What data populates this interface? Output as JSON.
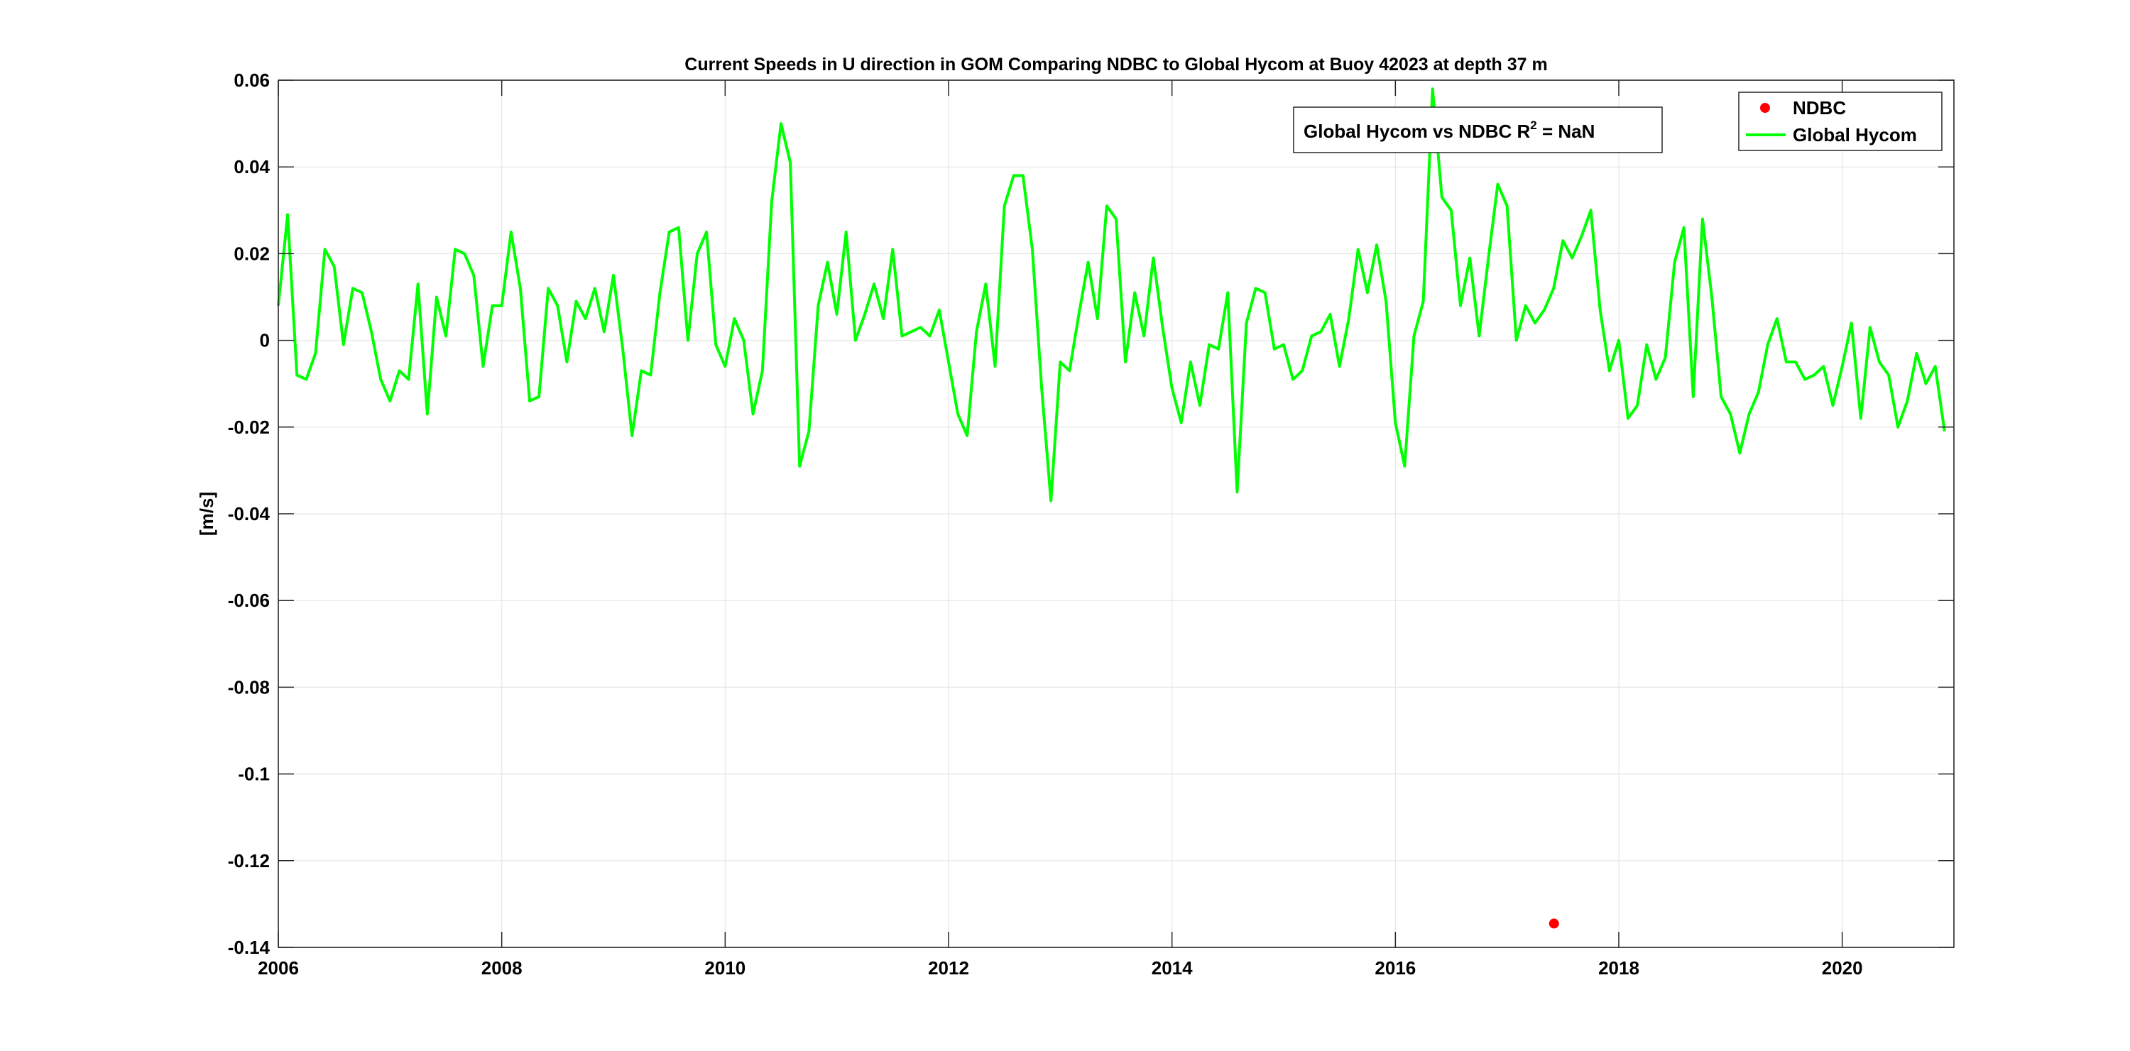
{
  "colors": {
    "hycom": "#00ff00",
    "ndbc": "#ff0000",
    "grid": "#e6e6e6",
    "axis": "#262626"
  },
  "chart_data": {
    "type": "line",
    "title": "Current Speeds in U direction in GOM Comparing NDBC to Global Hycom at Buoy  42023  at depth  37 m",
    "ylabel": "[m/s]",
    "xlabel": "",
    "xlim": [
      2006,
      2021
    ],
    "ylim": [
      -0.14,
      0.06
    ],
    "xticks": [
      2006,
      2008,
      2010,
      2012,
      2014,
      2016,
      2018,
      2020
    ],
    "xtick_labels": [
      "2006",
      "2008",
      "2010",
      "2012",
      "2014",
      "2016",
      "2018",
      "2020"
    ],
    "yticks": [
      0.06,
      0.04,
      0.02,
      0,
      -0.02,
      -0.04,
      -0.06,
      -0.08,
      -0.1,
      -0.12,
      -0.14
    ],
    "ytick_labels": [
      "0.06",
      "0.04",
      "0.02",
      "0",
      "-0.02",
      "-0.04",
      "-0.06",
      "-0.08",
      "-0.1",
      "-0.12",
      "-0.14"
    ],
    "grid": true,
    "legend": {
      "location": "top-right",
      "entries": [
        "NDBC",
        "Global Hycom"
      ]
    },
    "annotation": {
      "prefix": "Global Hycom vs NDBC R",
      "sup": "2",
      "suffix": " = NaN"
    },
    "series": [
      {
        "name": "NDBC",
        "style": "markers",
        "points": [
          [
            2017.42,
            -0.1345
          ]
        ]
      },
      {
        "name": "Global Hycom",
        "style": "line",
        "x_start": 2006.0,
        "x_step": 0.08333,
        "values": [
          0.008,
          0.029,
          -0.008,
          -0.009,
          -0.003,
          0.021,
          0.017,
          -0.001,
          0.012,
          0.011,
          0.002,
          -0.009,
          -0.014,
          -0.007,
          -0.009,
          0.013,
          -0.017,
          0.01,
          0.001,
          0.021,
          0.02,
          0.015,
          -0.006,
          0.008,
          0.008,
          0.025,
          0.012,
          -0.014,
          -0.013,
          0.012,
          0.008,
          -0.005,
          0.009,
          0.005,
          0.012,
          0.002,
          0.015,
          -0.002,
          -0.022,
          -0.007,
          -0.008,
          0.011,
          0.025,
          0.026,
          0.0,
          0.02,
          0.025,
          -0.001,
          -0.006,
          0.005,
          0.0,
          -0.017,
          -0.007,
          0.032,
          0.05,
          0.041,
          -0.029,
          -0.021,
          0.008,
          0.018,
          0.006,
          0.025,
          0.0,
          0.006,
          0.013,
          0.005,
          0.021,
          0.001,
          0.002,
          0.003,
          0.001,
          0.007,
          -0.005,
          -0.017,
          -0.022,
          0.002,
          0.013,
          -0.006,
          0.031,
          0.038,
          0.038,
          0.021,
          -0.011,
          -0.037,
          -0.005,
          -0.007,
          0.006,
          0.018,
          0.005,
          0.031,
          0.028,
          -0.005,
          0.011,
          0.001,
          0.019,
          0.003,
          -0.011,
          -0.019,
          -0.005,
          -0.015,
          -0.001,
          -0.002,
          0.011,
          -0.035,
          0.004,
          0.012,
          0.011,
          -0.002,
          -0.001,
          -0.009,
          -0.007,
          0.001,
          0.002,
          0.006,
          -0.006,
          0.005,
          0.021,
          0.011,
          0.022,
          0.009,
          -0.019,
          -0.029,
          0.001,
          0.009,
          0.058,
          0.033,
          0.03,
          0.008,
          0.019,
          0.001,
          0.019,
          0.036,
          0.031,
          0.0,
          0.008,
          0.004,
          0.007,
          0.012,
          0.023,
          0.019,
          0.024,
          0.03,
          0.007,
          -0.007,
          0.0,
          -0.018,
          -0.015,
          -0.001,
          -0.009,
          -0.004,
          0.018,
          0.026,
          -0.013,
          0.028,
          0.01,
          -0.013,
          -0.017,
          -0.026,
          -0.017,
          -0.012,
          -0.001,
          0.005,
          -0.005,
          -0.005,
          -0.009,
          -0.008,
          -0.006,
          -0.015,
          -0.006,
          0.004,
          -0.018,
          0.003,
          -0.005,
          -0.008,
          -0.02,
          -0.014,
          -0.003,
          -0.01,
          -0.006,
          -0.021
        ]
      }
    ]
  }
}
